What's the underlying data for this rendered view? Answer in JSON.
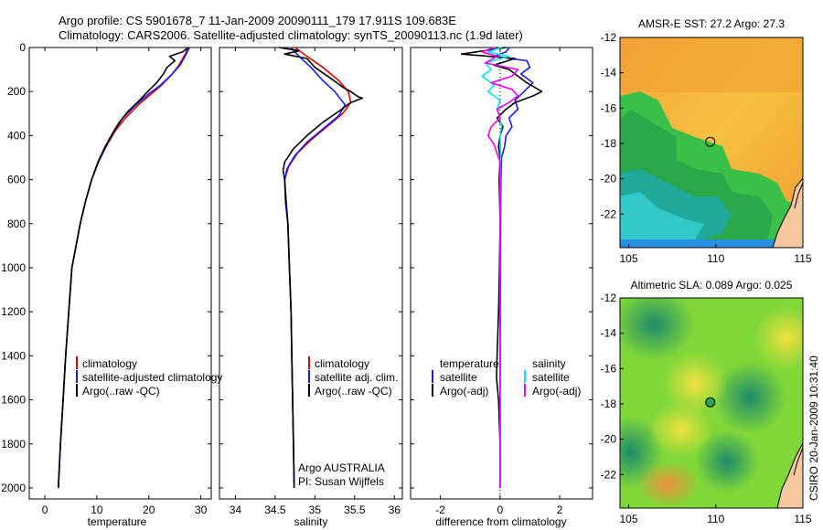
{
  "header": {
    "title_line1": "Argo profile: CS 5901678_7 11-Jan-2009 20090111_179 17.911S 109.683E",
    "title_line2": "Climatology: CARS2006. Satellite-adjusted climatology: synTS_20090113.nc (1.9d later)"
  },
  "colors": {
    "climatology": "#dd0000",
    "satellite": "#1a1aee",
    "argo": "#000000",
    "cyan": "#00e5ee",
    "magenta": "#ee00ee"
  },
  "chart_data": [
    {
      "type": "line",
      "id": "temperature",
      "xlabel": "temperature",
      "xlim": [
        -3,
        32
      ],
      "ylim": [
        2050,
        0
      ],
      "xticks": [
        0,
        10,
        20,
        30
      ],
      "xtick_labels": [
        "0",
        "10",
        "20",
        "30"
      ],
      "yticks": [
        0,
        200,
        400,
        600,
        800,
        1000,
        1200,
        1400,
        1600,
        1800,
        2000
      ],
      "ytick_labels": [
        "0",
        "200",
        "400",
        "600",
        "800",
        "1000",
        "1200",
        "1400",
        "1600",
        "1800",
        "2000"
      ],
      "legend": [
        "climatology",
        "satellite-adjusted climatology",
        "Argo(..raw -QC)"
      ],
      "series": [
        {
          "name": "climatology",
          "color": "#dd0000",
          "points": [
            [
              27.5,
              0
            ],
            [
              27.0,
              30
            ],
            [
              25.8,
              80
            ],
            [
              24.5,
              120
            ],
            [
              22.5,
              170
            ],
            [
              20.5,
              210
            ],
            [
              18.0,
              260
            ],
            [
              15.5,
              320
            ],
            [
              13.5,
              380
            ],
            [
              11.8,
              450
            ],
            [
              10.3,
              520
            ],
            [
              9.0,
              600
            ],
            [
              7.8,
              700
            ],
            [
              6.8,
              800
            ],
            [
              6.0,
              900
            ],
            [
              5.2,
              1000
            ],
            [
              4.6,
              1200
            ],
            [
              4.0,
              1400
            ],
            [
              3.5,
              1600
            ],
            [
              3.0,
              1800
            ],
            [
              2.6,
              2000
            ]
          ]
        },
        {
          "name": "satellite",
          "color": "#1a1aee",
          "points": [
            [
              27.8,
              0
            ],
            [
              27.2,
              30
            ],
            [
              26.0,
              80
            ],
            [
              24.5,
              120
            ],
            [
              22.3,
              170
            ],
            [
              20.0,
              210
            ],
            [
              17.5,
              260
            ],
            [
              15.0,
              320
            ],
            [
              13.3,
              380
            ],
            [
              11.7,
              450
            ],
            [
              10.3,
              520
            ],
            [
              9.0,
              600
            ],
            [
              7.8,
              700
            ],
            [
              6.8,
              800
            ],
            [
              6.0,
              900
            ],
            [
              5.2,
              1000
            ],
            [
              4.6,
              1200
            ],
            [
              4.0,
              1400
            ],
            [
              3.5,
              1600
            ],
            [
              3.0,
              1800
            ],
            [
              2.6,
              2000
            ]
          ]
        },
        {
          "name": "argo",
          "color": "#000000",
          "points": [
            [
              27.6,
              0
            ],
            [
              26.5,
              20
            ],
            [
              24.0,
              40
            ],
            [
              25.0,
              60
            ],
            [
              23.5,
              90
            ],
            [
              22.8,
              120
            ],
            [
              21.5,
              160
            ],
            [
              19.8,
              200
            ],
            [
              18.2,
              240
            ],
            [
              16.0,
              290
            ],
            [
              14.3,
              340
            ],
            [
              13.0,
              390
            ],
            [
              11.6,
              450
            ],
            [
              10.2,
              520
            ],
            [
              9.0,
              600
            ],
            [
              7.8,
              700
            ],
            [
              6.8,
              800
            ],
            [
              6.0,
              900
            ],
            [
              5.2,
              1000
            ],
            [
              4.6,
              1200
            ],
            [
              4.0,
              1400
            ],
            [
              3.5,
              1600
            ],
            [
              3.0,
              1800
            ],
            [
              2.6,
              2000
            ]
          ]
        }
      ]
    },
    {
      "type": "line",
      "id": "salinity",
      "xlabel": "salinity",
      "xlim": [
        33.8,
        36.1
      ],
      "ylim": [
        2050,
        0
      ],
      "xticks": [
        34,
        34.5,
        35,
        35.5,
        36
      ],
      "xtick_labels": [
        "34",
        "34.5",
        "35",
        "35.5",
        "36"
      ],
      "legend": [
        "climatology",
        "satellite adj. clim.",
        "Argo(..raw -QC)"
      ],
      "annotation": [
        "Argo AUSTRALIA",
        "PI: Susan Wijffels"
      ],
      "series": [
        {
          "name": "climatology",
          "color": "#dd0000",
          "points": [
            [
              34.75,
              0
            ],
            [
              34.9,
              40
            ],
            [
              35.1,
              90
            ],
            [
              35.3,
              150
            ],
            [
              35.42,
              200
            ],
            [
              35.45,
              250
            ],
            [
              35.35,
              300
            ],
            [
              35.15,
              360
            ],
            [
              34.95,
              420
            ],
            [
              34.78,
              480
            ],
            [
              34.67,
              540
            ],
            [
              34.62,
              600
            ],
            [
              34.63,
              700
            ],
            [
              34.66,
              800
            ],
            [
              34.68,
              1000
            ],
            [
              34.7,
              1200
            ],
            [
              34.71,
              1400
            ],
            [
              34.72,
              1600
            ],
            [
              34.73,
              1800
            ],
            [
              34.74,
              2000
            ]
          ]
        },
        {
          "name": "satellite",
          "color": "#1a1aee",
          "points": [
            [
              34.7,
              0
            ],
            [
              34.8,
              40
            ],
            [
              34.95,
              90
            ],
            [
              35.1,
              150
            ],
            [
              35.25,
              200
            ],
            [
              35.38,
              260
            ],
            [
              35.3,
              310
            ],
            [
              35.1,
              370
            ],
            [
              34.9,
              430
            ],
            [
              34.75,
              490
            ],
            [
              34.65,
              550
            ],
            [
              34.62,
              600
            ],
            [
              34.63,
              700
            ],
            [
              34.66,
              800
            ],
            [
              34.68,
              1000
            ],
            [
              34.7,
              1200
            ],
            [
              34.71,
              1400
            ],
            [
              34.72,
              1600
            ],
            [
              34.73,
              1800
            ],
            [
              34.74,
              2000
            ]
          ]
        },
        {
          "name": "argo",
          "color": "#000000",
          "points": [
            [
              34.55,
              0
            ],
            [
              34.8,
              15
            ],
            [
              34.62,
              30
            ],
            [
              34.9,
              50
            ],
            [
              35.0,
              90
            ],
            [
              35.2,
              140
            ],
            [
              35.35,
              180
            ],
            [
              35.45,
              200
            ],
            [
              35.55,
              225
            ],
            [
              35.6,
              230
            ],
            [
              35.45,
              250
            ],
            [
              35.3,
              290
            ],
            [
              35.1,
              340
            ],
            [
              34.9,
              400
            ],
            [
              34.73,
              460
            ],
            [
              34.62,
              520
            ],
            [
              34.6,
              560
            ],
            [
              34.62,
              600
            ],
            [
              34.64,
              700
            ],
            [
              34.66,
              800
            ],
            [
              34.68,
              1000
            ],
            [
              34.7,
              1200
            ],
            [
              34.71,
              1400
            ],
            [
              34.72,
              1600
            ],
            [
              34.73,
              1800
            ],
            [
              34.74,
              2000
            ]
          ]
        }
      ]
    },
    {
      "type": "line",
      "id": "difference",
      "xlabel": "difference from climatology",
      "xlim": [
        -3,
        3.1
      ],
      "ylim": [
        2050,
        0
      ],
      "xticks": [
        -2,
        0,
        2
      ],
      "xtick_labels": [
        "-2",
        "0",
        "2"
      ],
      "legend_left_title": "temperature",
      "legend_left": [
        "satellite",
        "Argo(-adj)"
      ],
      "legend_right_title": "salinity",
      "legend_right": [
        "satellite",
        "Argo(-adj)"
      ],
      "series": [
        {
          "name": "temperature satellite",
          "color": "#1a1aee",
          "points": [
            [
              0.3,
              0
            ],
            [
              0.2,
              20
            ],
            [
              -0.2,
              40
            ],
            [
              0.9,
              60
            ],
            [
              1.0,
              90
            ],
            [
              0.7,
              120
            ],
            [
              1.1,
              160
            ],
            [
              0.8,
              200
            ],
            [
              0.5,
              240
            ],
            [
              0.6,
              280
            ],
            [
              0.3,
              320
            ],
            [
              0.4,
              360
            ],
            [
              0.2,
              400
            ],
            [
              0.15,
              450
            ],
            [
              0.05,
              500
            ],
            [
              0.03,
              600
            ],
            [
              0.02,
              800
            ],
            [
              0.01,
              1200
            ],
            [
              0.0,
              1600
            ],
            [
              0.0,
              2000
            ]
          ]
        },
        {
          "name": "temperature Argo(-adj)",
          "color": "#000000",
          "points": [
            [
              0.2,
              0
            ],
            [
              -1.3,
              30
            ],
            [
              0.5,
              50
            ],
            [
              -0.2,
              80
            ],
            [
              0.3,
              100
            ],
            [
              0.6,
              130
            ],
            [
              0.9,
              160
            ],
            [
              1.4,
              200
            ],
            [
              1.1,
              220
            ],
            [
              0.5,
              250
            ],
            [
              0.2,
              280
            ],
            [
              -0.1,
              320
            ],
            [
              0.1,
              360
            ],
            [
              0.0,
              400
            ],
            [
              -0.05,
              450
            ],
            [
              0.0,
              500
            ],
            [
              -0.03,
              600
            ],
            [
              0.0,
              800
            ],
            [
              -0.02,
              1000
            ],
            [
              -0.05,
              1200
            ],
            [
              -0.1,
              1400
            ],
            [
              -0.12,
              1500
            ],
            [
              -0.05,
              1600
            ],
            [
              0.0,
              1800
            ],
            [
              0.0,
              2000
            ]
          ]
        },
        {
          "name": "salinity satellite",
          "color": "#00e5ee",
          "points": [
            [
              0.05,
              0
            ],
            [
              -0.4,
              20
            ],
            [
              0.3,
              40
            ],
            [
              -0.5,
              70
            ],
            [
              -0.3,
              100
            ],
            [
              -0.6,
              130
            ],
            [
              -0.2,
              170
            ],
            [
              -0.4,
              200
            ],
            [
              0.0,
              240
            ],
            [
              -0.1,
              280
            ],
            [
              0.0,
              320
            ],
            [
              0.05,
              360
            ],
            [
              0.0,
              400
            ],
            [
              0.02,
              500
            ],
            [
              0.0,
              700
            ],
            [
              0.0,
              1000
            ],
            [
              0.0,
              1500
            ],
            [
              0.0,
              2000
            ]
          ]
        },
        {
          "name": "salinity Argo(-adj)",
          "color": "#ee00ee",
          "points": [
            [
              -0.2,
              0
            ],
            [
              -0.6,
              20
            ],
            [
              -0.1,
              40
            ],
            [
              -0.5,
              70
            ],
            [
              0.6,
              100
            ],
            [
              0.4,
              130
            ],
            [
              -0.3,
              160
            ],
            [
              0.4,
              190
            ],
            [
              0.6,
              220
            ],
            [
              0.3,
              250
            ],
            [
              -0.1,
              280
            ],
            [
              0.0,
              320
            ],
            [
              -0.3,
              360
            ],
            [
              -0.4,
              400
            ],
            [
              -0.2,
              440
            ],
            [
              -0.1,
              480
            ],
            [
              0.0,
              520
            ],
            [
              0.0,
              600
            ],
            [
              0.0,
              800
            ],
            [
              0.0,
              1200
            ],
            [
              0.0,
              2000
            ]
          ]
        }
      ]
    },
    {
      "type": "heatmap",
      "id": "sst_map",
      "title": "AMSR-E SST: 27.2  Argo: 27.3",
      "xlim": [
        104.5,
        115
      ],
      "ylim": [
        -23.9,
        -12
      ],
      "xticks": [
        105,
        110,
        115
      ],
      "xtick_labels": [
        "105",
        "110",
        "115"
      ],
      "yticks": [
        -12,
        -14,
        -16,
        -18,
        -20,
        -22
      ],
      "ytick_labels": [
        "-12",
        "-14",
        "-16",
        "-18",
        "-20",
        "-22"
      ],
      "marker": {
        "lon": 109.683,
        "lat": -17.911
      }
    },
    {
      "type": "heatmap",
      "id": "sla_map",
      "title": "Altimetric SLA: 0.089  Argo: 0.025",
      "xlim": [
        104.5,
        115
      ],
      "ylim": [
        -23.9,
        -12
      ],
      "xticks": [
        105,
        110,
        115
      ],
      "xtick_labels": [
        "105",
        "110",
        "115"
      ],
      "yticks": [
        -12,
        -14,
        -16,
        -18,
        -20,
        -22
      ],
      "ytick_labels": [
        "-12",
        "-14",
        "-16",
        "-18",
        "-20",
        "-22"
      ],
      "marker": {
        "lon": 109.683,
        "lat": -17.911
      }
    }
  ],
  "footer": {
    "stamp": "CSIRO 20-Jan-2009 10:31:40"
  }
}
